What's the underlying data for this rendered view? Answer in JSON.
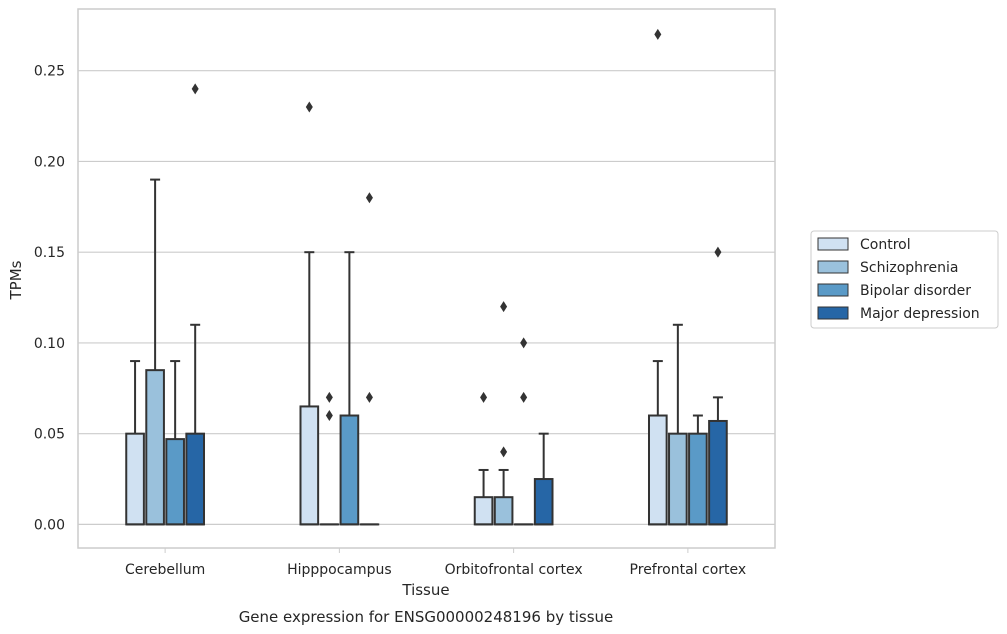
{
  "chart_data": {
    "type": "boxplot",
    "caption": "Gene expression for ENSG00000248196 by tissue",
    "xlabel": "Tissue",
    "ylabel": "TPMs",
    "ylim": [
      -0.013,
      0.284
    ],
    "yticks": [
      "0.00",
      "0.05",
      "0.10",
      "0.15",
      "0.20",
      "0.25"
    ],
    "grid": "horizontal",
    "legend_placement": "right",
    "categories": [
      "Cerebellum",
      "Hipppocampus",
      "Orbitofrontal cortex",
      "Prefrontal cortex"
    ],
    "series": [
      {
        "name": "Control",
        "color": "#d0e1f2",
        "boxes": [
          {
            "q1": 0.0,
            "median": 0.0,
            "q3": 0.05,
            "whisker_high": 0.09,
            "outliers": []
          },
          {
            "q1": 0.0,
            "median": 0.0,
            "q3": 0.065,
            "whisker_high": 0.15,
            "outliers": [
              0.23
            ]
          },
          {
            "q1": 0.0,
            "median": 0.0,
            "q3": 0.015,
            "whisker_high": 0.03,
            "outliers": [
              0.07
            ]
          },
          {
            "q1": 0.0,
            "median": 0.0,
            "q3": 0.06,
            "whisker_high": 0.09,
            "outliers": [
              0.27
            ]
          }
        ]
      },
      {
        "name": "Schizophrenia",
        "color": "#9ac1dc",
        "boxes": [
          {
            "q1": 0.0,
            "median": 0.0,
            "q3": 0.085,
            "whisker_high": 0.19,
            "outliers": []
          },
          {
            "q1": 0.0,
            "median": 0.0,
            "q3": 0.0,
            "whisker_high": 0.0,
            "outliers": [
              0.06,
              0.07
            ]
          },
          {
            "q1": 0.0,
            "median": 0.0,
            "q3": 0.015,
            "whisker_high": 0.03,
            "outliers": [
              0.04,
              0.12
            ]
          },
          {
            "q1": 0.0,
            "median": 0.0,
            "q3": 0.05,
            "whisker_high": 0.11,
            "outliers": []
          }
        ]
      },
      {
        "name": "Bipolar disorder",
        "color": "#5a9ac7",
        "boxes": [
          {
            "q1": 0.0,
            "median": 0.0,
            "q3": 0.047,
            "whisker_high": 0.09,
            "outliers": []
          },
          {
            "q1": 0.0,
            "median": 0.0,
            "q3": 0.06,
            "whisker_high": 0.15,
            "outliers": []
          },
          {
            "q1": 0.0,
            "median": 0.0,
            "q3": 0.0,
            "whisker_high": 0.0,
            "outliers": [
              0.07,
              0.1
            ]
          },
          {
            "q1": 0.0,
            "median": 0.0,
            "q3": 0.05,
            "whisker_high": 0.06,
            "outliers": []
          }
        ]
      },
      {
        "name": "Major depression",
        "color": "#2666a6",
        "boxes": [
          {
            "q1": 0.0,
            "median": 0.0,
            "q3": 0.05,
            "whisker_high": 0.11,
            "outliers": [
              0.24
            ]
          },
          {
            "q1": 0.0,
            "median": 0.0,
            "q3": 0.0,
            "whisker_high": 0.0,
            "outliers": [
              0.07,
              0.18
            ]
          },
          {
            "q1": 0.0,
            "median": 0.0,
            "q3": 0.025,
            "whisker_high": 0.05,
            "outliers": []
          },
          {
            "q1": 0.0,
            "median": 0.0,
            "q3": 0.057,
            "whisker_high": 0.07,
            "outliers": [
              0.15
            ]
          }
        ]
      }
    ]
  }
}
